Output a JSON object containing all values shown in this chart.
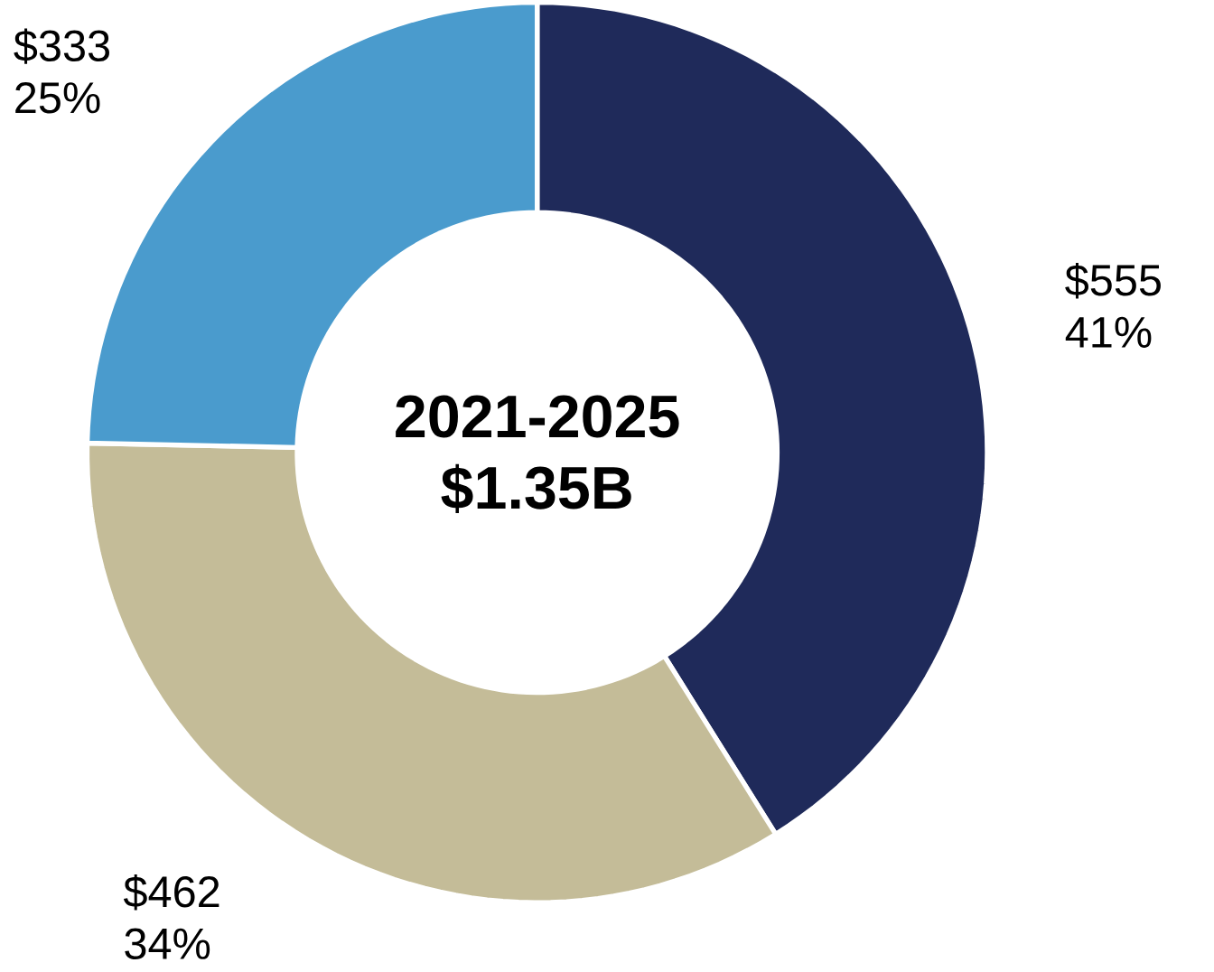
{
  "chart_data": {
    "type": "donut",
    "categories": [
      null,
      null,
      null
    ],
    "values": [
      555,
      462,
      333
    ],
    "colors": [
      "#1f2a5a",
      "#c4bc98",
      "#4a9bcd"
    ],
    "value_labels": [
      "$555 41%",
      "$462 34%",
      "$333 25%"
    ],
    "annotations": [
      "2021-2025",
      "$1.35B"
    ]
  }
}
